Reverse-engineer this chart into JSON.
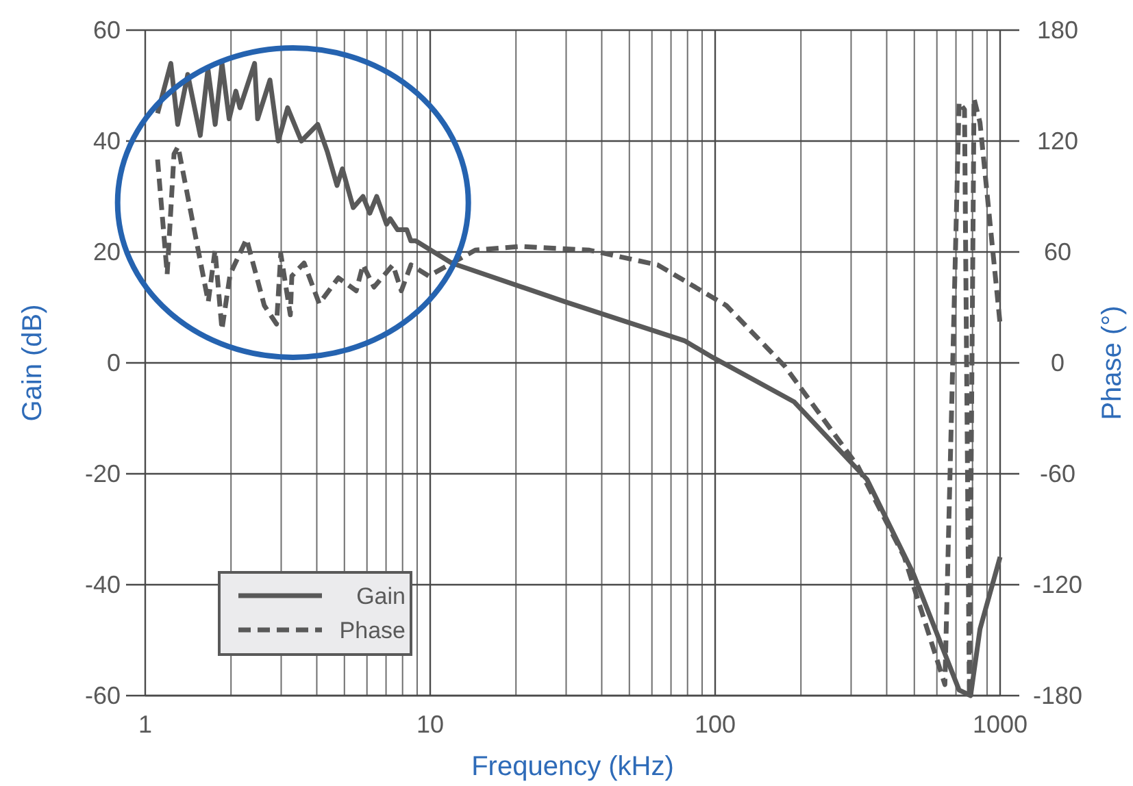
{
  "chart_data": {
    "type": "line",
    "xlabel": "Frequency (kHz)",
    "ylabel": "Gain (dB)",
    "y2label": "Phase (°)",
    "log": "x",
    "grid": true,
    "legend": "bottom left",
    "xlim": [
      1,
      1000
    ],
    "xticks": [
      1,
      10,
      100,
      1000
    ],
    "ylim": [
      -60,
      60
    ],
    "yticks": [
      -60,
      -40,
      -20,
      0,
      20,
      40,
      60
    ],
    "y2lim": [
      -180,
      180
    ],
    "y2ticks": [
      -180,
      -120,
      -60,
      0,
      60,
      120,
      180
    ],
    "series": [
      {
        "name": "Gain",
        "color": "#595959",
        "line_style": "solid",
        "x": [
          1.105,
          1.23,
          1.3,
          1.41,
          1.56,
          1.66,
          1.76,
          1.86,
          1.97,
          2.08,
          2.15,
          2.42,
          2.48,
          2.74,
          2.93,
          3.16,
          3.53,
          4.03,
          4.36,
          4.71,
          4.92,
          5.37,
          5.81,
          6.14,
          6.49,
          7.03,
          7.24,
          7.68,
          8.28,
          8.55,
          8.9,
          11.9,
          29.8,
          78,
          98,
          189,
          341,
          496,
          718,
          788,
          850,
          1000
        ],
        "values": [
          45,
          54,
          43,
          52,
          41,
          53,
          43,
          54,
          44,
          49,
          46,
          54,
          44,
          51,
          40,
          46,
          40,
          43,
          38,
          32,
          35,
          28,
          30,
          27,
          30,
          25,
          26,
          24,
          24,
          22,
          22,
          18,
          11,
          4,
          1,
          -7,
          -21,
          -38,
          -59,
          -60,
          -48,
          -35
        ]
      },
      {
        "name": "Phase",
        "color": "#595959",
        "line_style": "dashed",
        "axis": "y2",
        "x": [
          1.105,
          1.194,
          1.262,
          1.304,
          1.664,
          1.758,
          1.859,
          1.986,
          2.268,
          2.618,
          2.89,
          2.99,
          3.23,
          3.27,
          3.61,
          4.08,
          4.76,
          5.5,
          5.81,
          6.35,
          7.4,
          7.92,
          8.56,
          9.89,
          14.4,
          20.8,
          36.2,
          62.9,
          109.5,
          176,
          317,
          461,
          640,
          718,
          750,
          780,
          810,
          850,
          1000
        ],
        "values": [
          110,
          48,
          113,
          117,
          33,
          61,
          18,
          48,
          67,
          31,
          21,
          59,
          26,
          47,
          54,
          32,
          46,
          39,
          53,
          41,
          53,
          39,
          53,
          47,
          61,
          63,
          61,
          53,
          31,
          -2,
          -56,
          -105,
          -174,
          141,
          137,
          -180,
          143,
          130,
          21
        ]
      }
    ]
  }
}
